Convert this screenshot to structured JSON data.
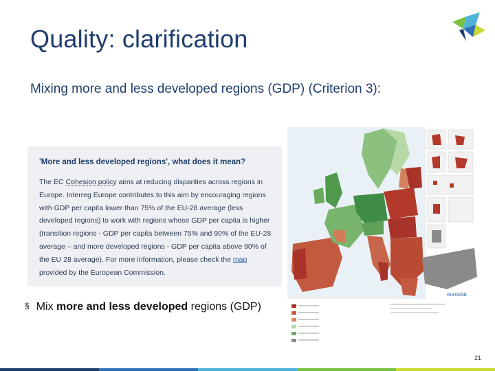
{
  "slide": {
    "title": "Quality: clarification",
    "subtitle": "Mixing more and less developed regions (GDP) (Criterion 3):",
    "infobox": {
      "heading": "'More and less developed regions', what does it mean?",
      "p1_pre": "The EC ",
      "p1_link1": "Cohesion policy",
      "p1_mid": " aims at reducing disparities across regions in Europe. Interreg Europe contributes to this aim by encouraging regions with GDP per capita lower than 75% of the EU-28 average (less developed regions) to work with regions whose GDP per capita is higher (transition regions - GDP per capita between 75% and 90% of the EU-28 average – and more developed regions - GDP per capita above 90% of the EU 28 average). For more information, please check the ",
      "p1_link2": "map",
      "p1_post": " provided by the European Commission."
    },
    "bullet": {
      "marker": "§",
      "pre": "Mix ",
      "bold": "more and less developed",
      "post": " regions (GDP)"
    },
    "map_label": "eurostat",
    "page_number": "21",
    "colors": {
      "title": "#1f3d6b",
      "map_red": "#b33a2b",
      "map_green": "#4f9a4d",
      "map_grey": "#8a8a8a",
      "footer": [
        "#1f3d6b",
        "#2e6fb5",
        "#4fb3d9",
        "#7ac143",
        "#c6d92f"
      ]
    }
  }
}
